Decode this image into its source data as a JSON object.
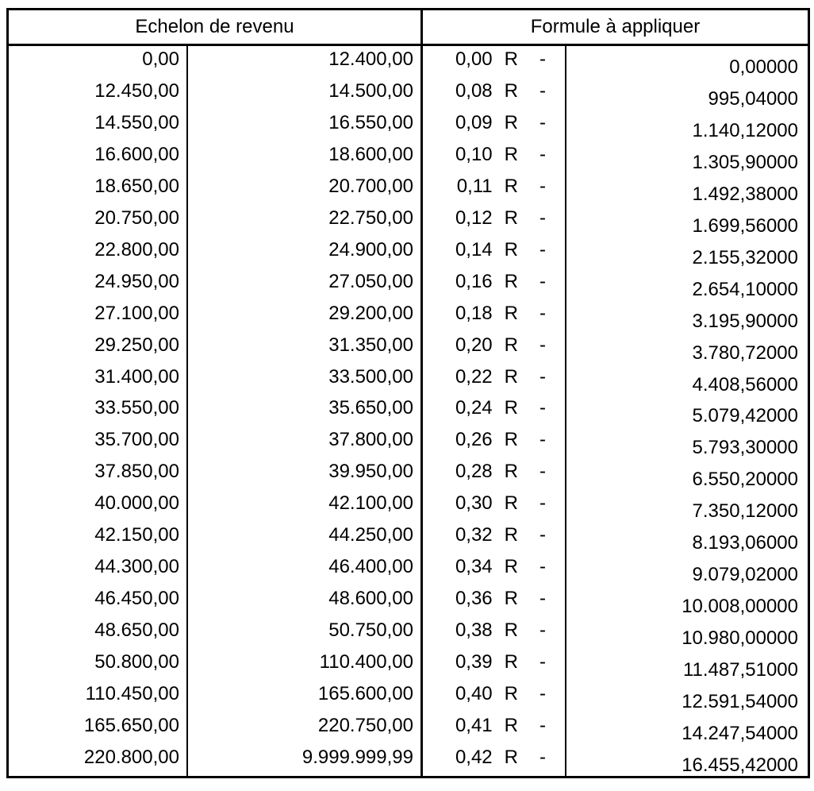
{
  "page": {
    "background_color": "#ffffff",
    "text_color": "#000000",
    "border_color": "#000000"
  },
  "table": {
    "header": {
      "left": "Echelon de revenu",
      "right": "Formule à appliquer"
    },
    "formula": {
      "variable": "R",
      "operator": "-"
    },
    "rows": [
      {
        "lower": "0,00",
        "upper": "12.400,00",
        "rate": "0,00",
        "constant": "0,00000"
      },
      {
        "lower": "12.450,00",
        "upper": "14.500,00",
        "rate": "0,08",
        "constant": "995,04000"
      },
      {
        "lower": "14.550,00",
        "upper": "16.550,00",
        "rate": "0,09",
        "constant": "1.140,12000"
      },
      {
        "lower": "16.600,00",
        "upper": "18.600,00",
        "rate": "0,10",
        "constant": "1.305,90000"
      },
      {
        "lower": "18.650,00",
        "upper": "20.700,00",
        "rate": "0,11",
        "constant": "1.492,38000"
      },
      {
        "lower": "20.750,00",
        "upper": "22.750,00",
        "rate": "0,12",
        "constant": "1.699,56000"
      },
      {
        "lower": "22.800,00",
        "upper": "24.900,00",
        "rate": "0,14",
        "constant": "2.155,32000"
      },
      {
        "lower": "24.950,00",
        "upper": "27.050,00",
        "rate": "0,16",
        "constant": "2.654,10000"
      },
      {
        "lower": "27.100,00",
        "upper": "29.200,00",
        "rate": "0,18",
        "constant": "3.195,90000"
      },
      {
        "lower": "29.250,00",
        "upper": "31.350,00",
        "rate": "0,20",
        "constant": "3.780,72000"
      },
      {
        "lower": "31.400,00",
        "upper": "33.500,00",
        "rate": "0,22",
        "constant": "4.408,56000"
      },
      {
        "lower": "33.550,00",
        "upper": "35.650,00",
        "rate": "0,24",
        "constant": "5.079,42000"
      },
      {
        "lower": "35.700,00",
        "upper": "37.800,00",
        "rate": "0,26",
        "constant": "5.793,30000"
      },
      {
        "lower": "37.850,00",
        "upper": "39.950,00",
        "rate": "0,28",
        "constant": "6.550,20000"
      },
      {
        "lower": "40.000,00",
        "upper": "42.100,00",
        "rate": "0,30",
        "constant": "7.350,12000"
      },
      {
        "lower": "42.150,00",
        "upper": "44.250,00",
        "rate": "0,32",
        "constant": "8.193,06000"
      },
      {
        "lower": "44.300,00",
        "upper": "46.400,00",
        "rate": "0,34",
        "constant": "9.079,02000"
      },
      {
        "lower": "46.450,00",
        "upper": "48.600,00",
        "rate": "0,36",
        "constant": "10.008,00000"
      },
      {
        "lower": "48.650,00",
        "upper": "50.750,00",
        "rate": "0,38",
        "constant": "10.980,00000"
      },
      {
        "lower": "50.800,00",
        "upper": "110.400,00",
        "rate": "0,39",
        "constant": "11.487,51000"
      },
      {
        "lower": "110.450,00",
        "upper": "165.600,00",
        "rate": "0,40",
        "constant": "12.591,54000"
      },
      {
        "lower": "165.650,00",
        "upper": "220.750,00",
        "rate": "0,41",
        "constant": "14.247,54000"
      },
      {
        "lower": "220.800,00",
        "upper": "9.999.999,99",
        "rate": "0,42",
        "constant": "16.455,42000"
      }
    ]
  }
}
